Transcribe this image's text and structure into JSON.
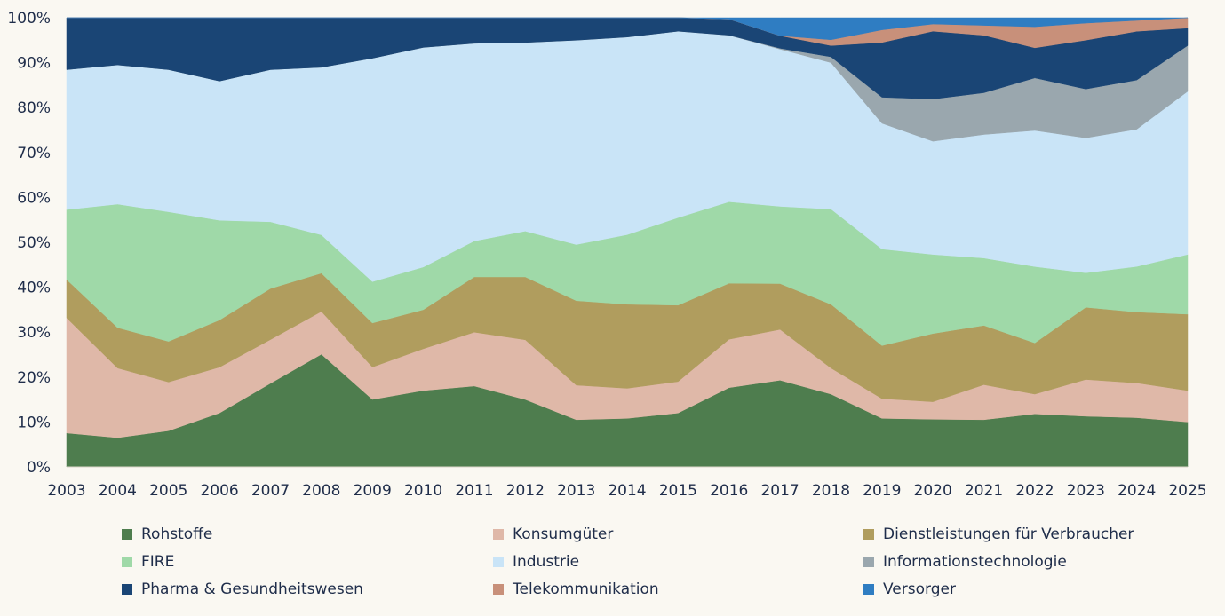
{
  "chart_data": {
    "type": "area",
    "stacked": true,
    "normalized": true,
    "title": "",
    "xlabel": "",
    "ylabel": "",
    "ylim": [
      0,
      100
    ],
    "yticks": [
      "0%",
      "10%",
      "20%",
      "30%",
      "40%",
      "50%",
      "60%",
      "70%",
      "80%",
      "90%",
      "100%"
    ],
    "categories": [
      "2003",
      "2004",
      "2005",
      "2006",
      "2007",
      "2008",
      "2009",
      "2010",
      "2011",
      "2012",
      "2013",
      "2014",
      "2015",
      "2016",
      "2017",
      "2018",
      "2019",
      "2020",
      "2021",
      "2022",
      "2023",
      "2024",
      "2025"
    ],
    "legend_position": "bottom",
    "series": [
      {
        "name": "Rohstoffe",
        "color": "#4e7d4e",
        "values": [
          7.5,
          6.5,
          8,
          12,
          18.5,
          25,
          15,
          17,
          18,
          15,
          10.5,
          10.8,
          12,
          17.7,
          19.3,
          16.2,
          10.8,
          10.6,
          10.5,
          11.8,
          11.3,
          10.9,
          10
        ]
      },
      {
        "name": "Konsumgüter",
        "color": "#dfb8a8",
        "values": [
          25.5,
          15.5,
          10.8,
          10.2,
          9.7,
          9.5,
          7.2,
          9.3,
          12,
          13.3,
          7.7,
          6.7,
          7,
          10.8,
          11.3,
          5.8,
          4.4,
          3.9,
          7.8,
          4.4,
          8.2,
          7.7,
          7
        ]
      },
      {
        "name": "Dienstleistungen für Verbraucher",
        "color": "#b09d5e",
        "values": [
          8.5,
          9,
          9,
          10.5,
          11.3,
          8.5,
          9.8,
          8.7,
          12.3,
          14,
          18.8,
          18.7,
          17,
          12.5,
          10.2,
          14.2,
          11.8,
          15.2,
          13.2,
          11.4,
          16.1,
          15.7,
          17
        ]
      },
      {
        "name": "FIRE",
        "color": "#9fd9a8",
        "values": [
          15.5,
          27.5,
          28.7,
          22.2,
          14.8,
          8.5,
          9.2,
          9.5,
          8,
          10.2,
          12.5,
          15.5,
          19.5,
          18.2,
          17.2,
          21.2,
          21.5,
          17.6,
          15,
          17,
          7.7,
          10.1,
          13.3
        ]
      },
      {
        "name": "Industrie",
        "color": "#c9e4f7",
        "values": [
          31,
          31,
          31.5,
          31,
          33.7,
          37.2,
          49.7,
          48.9,
          44,
          42,
          45.5,
          44,
          41.5,
          37.2,
          35,
          32.6,
          28,
          25.2,
          27.5,
          30.3,
          30.1,
          30.4,
          36.3
        ]
      },
      {
        "name": "Informationstechnologie",
        "color": "#9aa7ae",
        "values": [
          0,
          0,
          0,
          0,
          0,
          0,
          0,
          0,
          0,
          0,
          0,
          0,
          0,
          0,
          0.2,
          1.3,
          5.8,
          9.4,
          9.3,
          11.7,
          10.9,
          10.9,
          10.2
        ]
      },
      {
        "name": "Pharma & Gesundheitswesen",
        "color": "#1a4575",
        "values": [
          11.5,
          10.5,
          11.5,
          14.1,
          11.5,
          11,
          9,
          6.6,
          5.7,
          5.5,
          5,
          4.3,
          3,
          3.6,
          2.8,
          2.5,
          12.2,
          15.1,
          12.8,
          6.7,
          10.9,
          10.8,
          3.9
        ]
      },
      {
        "name": "Telekommunikation",
        "color": "#c8907a",
        "values": [
          0,
          0,
          0,
          0,
          0,
          0,
          0,
          0,
          0,
          0,
          0,
          0,
          0,
          0,
          0,
          1.3,
          2.8,
          1.6,
          2.2,
          4.7,
          3.8,
          2.4,
          2.3
        ]
      },
      {
        "name": "Versorger",
        "color": "#2f7dc2",
        "values": [
          0,
          0,
          0,
          0,
          0,
          0,
          0,
          0,
          0,
          0,
          0,
          0,
          0,
          0.3,
          4,
          4.9,
          2.7,
          1.4,
          1.7,
          2,
          1.2,
          0.6,
          0
        ]
      }
    ]
  }
}
